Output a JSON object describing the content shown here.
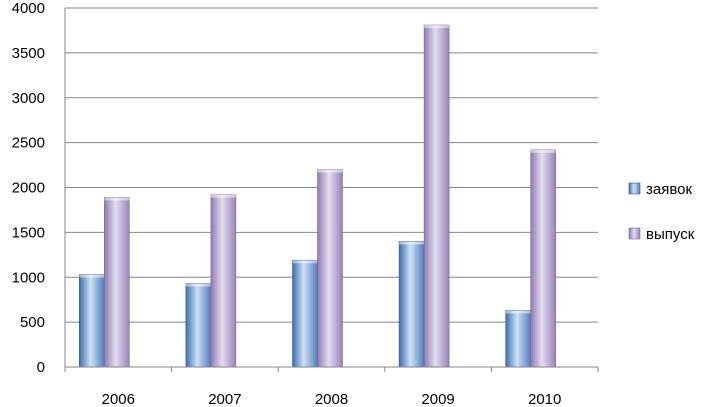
{
  "chart_data": {
    "type": "bar",
    "title": "",
    "xlabel": "",
    "ylabel": "",
    "categories": [
      "2006",
      "2007",
      "2008",
      "2009",
      "2010"
    ],
    "series": [
      {
        "name": "заявок",
        "values": [
          1030,
          930,
          1190,
          1400,
          630
        ],
        "color": "#6f9fd4"
      },
      {
        "name": "выпуск",
        "values": [
          1890,
          1920,
          2200,
          3810,
          2420
        ],
        "color": "#b6a7cc"
      }
    ],
    "ylim": [
      0,
      4000
    ],
    "yticks": [
      "0",
      "500",
      "1000",
      "1500",
      "2000",
      "2500",
      "3000",
      "3500",
      "4000"
    ],
    "grid": true,
    "legend_position": "right"
  }
}
